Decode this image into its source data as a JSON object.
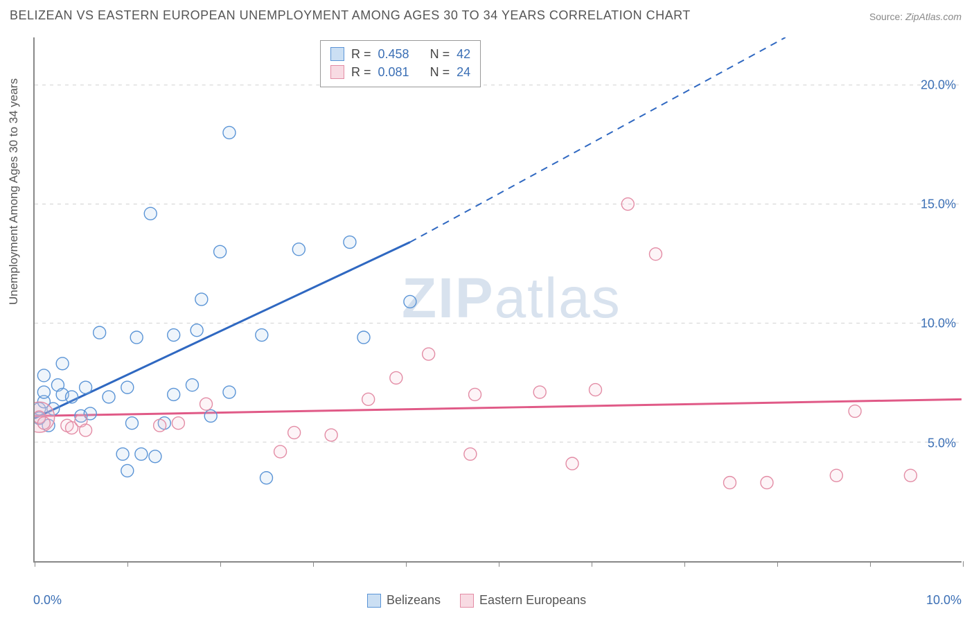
{
  "title": "BELIZEAN VS EASTERN EUROPEAN UNEMPLOYMENT AMONG AGES 30 TO 34 YEARS CORRELATION CHART",
  "source_label": "Source:",
  "source_value": "ZipAtlas.com",
  "y_axis_label": "Unemployment Among Ages 30 to 34 years",
  "watermark_bold": "ZIP",
  "watermark_rest": "atlas",
  "chart": {
    "type": "scatter",
    "xlim": [
      0,
      10
    ],
    "ylim": [
      0,
      22
    ],
    "x_ticks": [
      0,
      1,
      2,
      3,
      4,
      5,
      6,
      7,
      8,
      9,
      10
    ],
    "x_tick_labels": {
      "0": "0.0%",
      "10": "10.0%"
    },
    "y_ticks": [
      5,
      10,
      15,
      20
    ],
    "y_tick_labels": [
      "5.0%",
      "10.0%",
      "15.0%",
      "20.0%"
    ],
    "grid_color": "#d0d0d0",
    "axis_color": "#888888",
    "background_color": "#ffffff",
    "marker_radius": 9,
    "marker_stroke_width": 1.4,
    "marker_fill_opacity": 0.18,
    "trend_width_solid": 3,
    "trend_width_dash": 2,
    "series": [
      {
        "name": "Belizeans",
        "color_stroke": "#5a94d6",
        "color_fill": "#a9c9eb",
        "trend_color": "#2f68c1",
        "r": "0.458",
        "n": "42",
        "trend": {
          "x1": 0,
          "y1": 6.0,
          "x2_solid": 4.05,
          "y2_solid": 13.4,
          "x2": 8.1,
          "y2": 22
        },
        "points": [
          [
            0.05,
            6.0
          ],
          [
            0.05,
            6.4
          ],
          [
            0.1,
            6.7
          ],
          [
            0.1,
            7.1
          ],
          [
            0.1,
            7.8
          ],
          [
            0.15,
            5.7
          ],
          [
            0.2,
            6.4
          ],
          [
            0.25,
            7.4
          ],
          [
            0.3,
            7.0
          ],
          [
            0.3,
            8.3
          ],
          [
            0.4,
            6.9
          ],
          [
            0.5,
            6.1
          ],
          [
            0.55,
            7.3
          ],
          [
            0.6,
            6.2
          ],
          [
            0.7,
            9.6
          ],
          [
            0.8,
            6.9
          ],
          [
            0.95,
            4.5
          ],
          [
            1.0,
            3.8
          ],
          [
            1.0,
            7.3
          ],
          [
            1.05,
            5.8
          ],
          [
            1.1,
            9.4
          ],
          [
            1.15,
            4.5
          ],
          [
            1.25,
            14.6
          ],
          [
            1.3,
            4.4
          ],
          [
            1.4,
            5.8
          ],
          [
            1.5,
            9.5
          ],
          [
            1.5,
            7.0
          ],
          [
            1.7,
            7.4
          ],
          [
            1.75,
            9.7
          ],
          [
            1.8,
            11.0
          ],
          [
            1.9,
            6.1
          ],
          [
            2.0,
            13.0
          ],
          [
            2.1,
            18.0
          ],
          [
            2.1,
            7.1
          ],
          [
            2.45,
            9.5
          ],
          [
            2.5,
            3.5
          ],
          [
            2.85,
            13.1
          ],
          [
            3.4,
            13.4
          ],
          [
            3.55,
            9.4
          ],
          [
            4.05,
            10.9
          ]
        ]
      },
      {
        "name": "Eastern Europeans",
        "color_stroke": "#e38ca5",
        "color_fill": "#f3c3d1",
        "trend_color": "#e05a87",
        "r": "0.081",
        "n": "24",
        "trend": {
          "x1": 0,
          "y1": 6.1,
          "x2_solid": 10,
          "y2_solid": 6.8,
          "x2": 10,
          "y2": 6.8
        },
        "points": [
          [
            0.05,
            6.05
          ],
          [
            0.1,
            5.8
          ],
          [
            0.35,
            5.7
          ],
          [
            0.4,
            5.6
          ],
          [
            0.5,
            5.9
          ],
          [
            0.55,
            5.5
          ],
          [
            1.35,
            5.7
          ],
          [
            1.55,
            5.8
          ],
          [
            1.85,
            6.6
          ],
          [
            2.65,
            4.6
          ],
          [
            2.8,
            5.4
          ],
          [
            3.2,
            5.3
          ],
          [
            3.6,
            6.8
          ],
          [
            3.9,
            7.7
          ],
          [
            4.25,
            8.7
          ],
          [
            4.75,
            7.0
          ],
          [
            4.7,
            4.5
          ],
          [
            5.45,
            7.1
          ],
          [
            5.8,
            4.1
          ],
          [
            6.05,
            7.2
          ],
          [
            6.4,
            15.0
          ],
          [
            6.7,
            12.9
          ],
          [
            7.5,
            3.3
          ],
          [
            7.9,
            3.3
          ],
          [
            8.65,
            3.6
          ],
          [
            8.85,
            6.3
          ],
          [
            9.45,
            3.6
          ]
        ],
        "big_point": [
          0.05,
          6.05
        ]
      }
    ]
  },
  "legend_top": {
    "r_label": "R =",
    "n_label": "N ="
  },
  "legend_bottom": [
    {
      "label": "Belizeans"
    },
    {
      "label": "Eastern Europeans"
    }
  ]
}
